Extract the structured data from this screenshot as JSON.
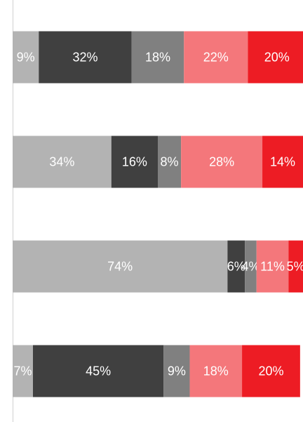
{
  "chart_data": {
    "type": "stacked_barh",
    "categories": [
      null,
      null,
      null,
      null
    ],
    "xlim": [
      0,
      100
    ],
    "series": [
      {
        "color": "#b3b3b3",
        "values": [
          9,
          34,
          74,
          7
        ],
        "value_labels": [
          "9%",
          "34%",
          "74%",
          "7%"
        ]
      },
      {
        "color": "#404040",
        "values": [
          32,
          16,
          6,
          45
        ],
        "value_labels": [
          "32%",
          "16%",
          "6%",
          "45%"
        ]
      },
      {
        "color": "#808080",
        "values": [
          18,
          8,
          4,
          9
        ],
        "value_labels": [
          "18%",
          "8%",
          "4%",
          "9%"
        ]
      },
      {
        "color": "#f4777b",
        "values": [
          22,
          28,
          11,
          18
        ],
        "value_labels": [
          "22%",
          "28%",
          "11%",
          "18%"
        ]
      },
      {
        "color": "#ed1c24",
        "values": [
          20,
          14,
          5,
          20
        ],
        "value_labels": [
          "20%",
          "14%",
          "5%",
          "20%"
        ]
      }
    ]
  }
}
